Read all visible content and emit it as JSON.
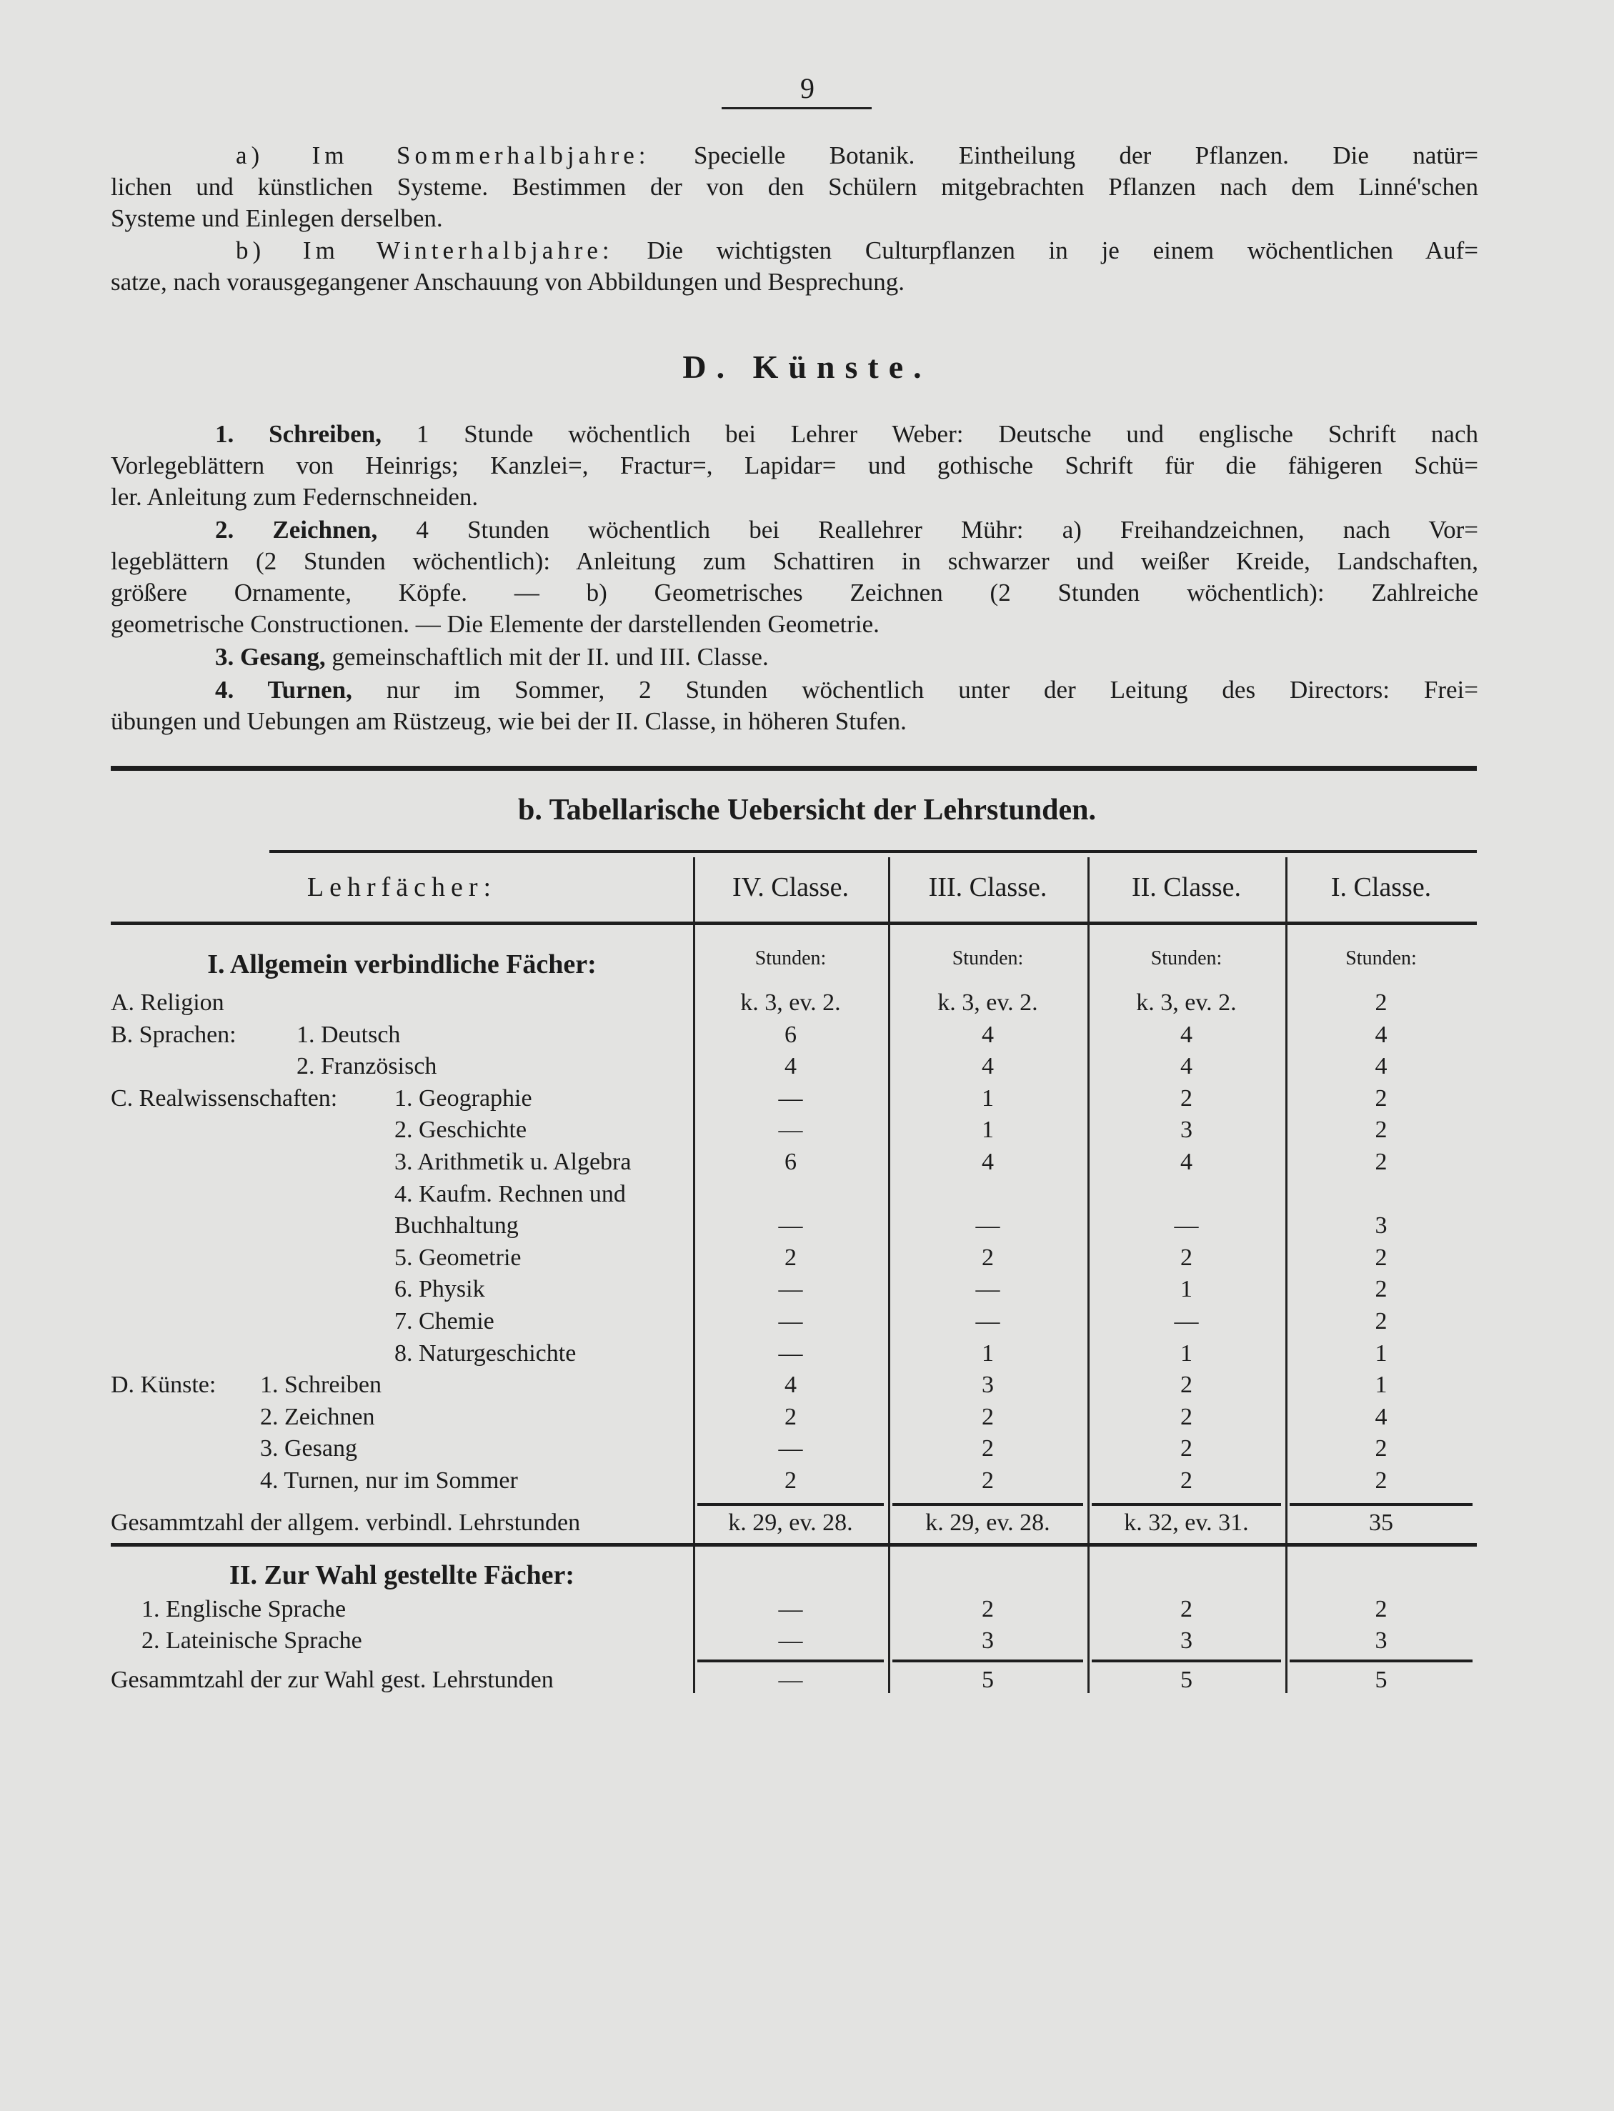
{
  "page_number": "9",
  "paragraphs_top": [
    {
      "lead": "a) Im Sommerhalbjahre:",
      "lead_style": "gesperrt",
      "lines": [
        "Specielle Botanik. Eintheilung der Pflanzen. Die natür=",
        "lichen und künstlichen Systeme. Bestimmen der von den Schülern mitgebrachten Pflanzen nach dem Linné'schen",
        "Systeme und Einlegen derselben."
      ]
    },
    {
      "lead": "b) Im Winterhalbjahre:",
      "lead_style": "gesperrt",
      "lines": [
        "Die wichtigsten Culturpflanzen in je einem wöchentlichen Auf=",
        "satze, nach vorausgegangener Anschauung von Abbildungen und Besprechung."
      ]
    }
  ],
  "section_heading": "D. Künste.",
  "paragraphs_kuenste": [
    {
      "lead": "1. Schreiben,",
      "lead_style": "bold",
      "lines": [
        "1 Stunde wöchentlich bei Lehrer Weber: Deutsche und englische Schrift nach",
        "Vorlegeblättern von Heinrigs; Kanzlei=, Fractur=, Lapidar= und gothische Schrift für die fähigeren Schü=",
        "ler. Anleitung zum Federnschneiden."
      ]
    },
    {
      "lead": "2. Zeichnen,",
      "lead_style": "bold",
      "lines": [
        "4 Stunden wöchentlich bei Reallehrer Mühr: a) Freihandzeichnen, nach Vor=",
        "legeblättern (2 Stunden wöchentlich): Anleitung zum Schattiren in schwarzer und weißer Kreide, Landschaften,",
        "größere Ornamente, Köpfe. — b) Geometrisches Zeichnen (2 Stunden wöchentlich): Zahlreiche",
        "geometrische Constructionen. — Die Elemente der darstellenden Geometrie."
      ]
    },
    {
      "lead": "3. Gesang,",
      "lead_style": "bold",
      "lines": [
        "gemeinschaftlich mit der II. und III. Classe."
      ]
    },
    {
      "lead": "4. Turnen,",
      "lead_style": "bold",
      "lines": [
        "nur im Sommer, 2 Stunden wöchentlich unter der Leitung des Directors: Frei=",
        "übungen und Uebungen am Rüstzeug, wie bei der II. Classe, in höheren Stufen."
      ]
    }
  ],
  "table": {
    "title": "b. Tabellarische Uebersicht der Lehrstunden.",
    "subject_header": "Lehrfächer:",
    "columns": [
      "IV. Classe.",
      "III. Classe.",
      "II. Classe.",
      "I. Classe."
    ],
    "unit_label": "Stunden:",
    "section_1": {
      "title": "I. Allgemein verbindliche Fächer:",
      "groups": [
        {
          "label": "A. Religion",
          "items": [
            {
              "label": "",
              "values": [
                "k. 3, ev. 2.",
                "k. 3, ev. 2.",
                "k. 3, ev. 2.",
                "2"
              ]
            }
          ]
        },
        {
          "label": "B. Sprachen:",
          "items": [
            {
              "label": "1. Deutsch",
              "values": [
                "6",
                "4",
                "4",
                "4"
              ]
            },
            {
              "label": "2. Französisch",
              "values": [
                "4",
                "4",
                "4",
                "4"
              ]
            }
          ]
        },
        {
          "label": "C. Realwissenschaften:",
          "items": [
            {
              "label": "1. Geographie",
              "values": [
                "—",
                "1",
                "2",
                "2"
              ]
            },
            {
              "label": "2. Geschichte",
              "values": [
                "—",
                "1",
                "3",
                "2"
              ]
            },
            {
              "label": "3. Arithmetik u. Algebra",
              "values": [
                "6",
                "4",
                "4",
                "2"
              ]
            },
            {
              "label": "4. Kaufm. Rechnen und",
              "values": [
                "",
                "",
                "",
                ""
              ]
            },
            {
              "label": "Buchhaltung",
              "values": [
                "—",
                "—",
                "—",
                "3"
              ]
            },
            {
              "label": "5. Geometrie",
              "values": [
                "2",
                "2",
                "2",
                "2"
              ]
            },
            {
              "label": "6. Physik",
              "values": [
                "—",
                "—",
                "1",
                "2"
              ]
            },
            {
              "label": "7. Chemie",
              "values": [
                "—",
                "—",
                "—",
                "2"
              ]
            },
            {
              "label": "8. Naturgeschichte",
              "values": [
                "—",
                "1",
                "1",
                "1"
              ]
            }
          ]
        },
        {
          "label": "D. Künste:",
          "items": [
            {
              "label": "1. Schreiben",
              "values": [
                "4",
                "3",
                "2",
                "1"
              ]
            },
            {
              "label": "2. Zeichnen",
              "values": [
                "2",
                "2",
                "2",
                "4"
              ]
            },
            {
              "label": "3. Gesang",
              "values": [
                "—",
                "2",
                "2",
                "2"
              ]
            },
            {
              "label": "4. Turnen, nur im Sommer",
              "values": [
                "2",
                "2",
                "2",
                "2"
              ]
            }
          ]
        }
      ],
      "total": {
        "label": "Gesammtzahl der allgem. verbindl. Lehrstunden",
        "values": [
          "k. 29, ev. 28.",
          "k. 29, ev. 28.",
          "k. 32, ev. 31.",
          "35"
        ]
      }
    },
    "section_2": {
      "title": "II. Zur Wahl gestellte Fächer:",
      "items": [
        {
          "label": "1. Englische Sprache",
          "values": [
            "—",
            "2",
            "2",
            "2"
          ]
        },
        {
          "label": "2. Lateinische Sprache",
          "values": [
            "—",
            "3",
            "3",
            "3"
          ]
        }
      ],
      "total": {
        "label": "Gesammtzahl der zur Wahl gest. Lehrstunden",
        "values": [
          "—",
          "5",
          "5",
          "5"
        ]
      }
    }
  }
}
